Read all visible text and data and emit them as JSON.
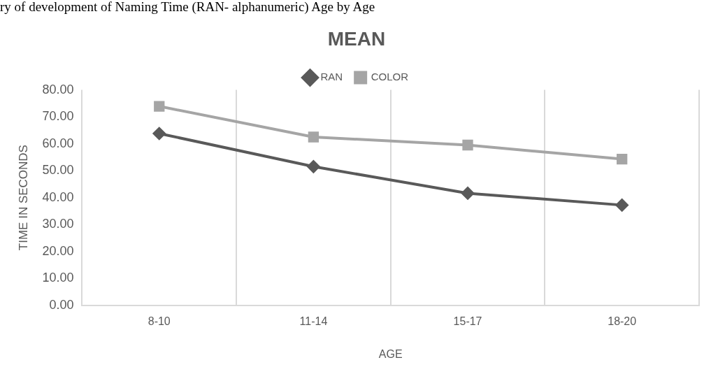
{
  "chart_data": {
    "type": "line",
    "title": "MEAN",
    "xlabel": "AGE",
    "ylabel": "TIME IN SECONDS",
    "annotations": [
      "ry of development of Naming Time (RAN- alphanumeric) Age by Age"
    ],
    "categories": [
      "8-10",
      "11-14",
      "15-17",
      "18-20"
    ],
    "series": [
      {
        "name": "RAN",
        "color": "#595959",
        "marker": "diamond",
        "values": [
          63.8,
          51.5,
          41.6,
          37.2
        ]
      },
      {
        "name": "COLOR",
        "color": "#a5a5a5",
        "marker": "square",
        "values": [
          73.9,
          62.5,
          59.5,
          54.3
        ]
      }
    ],
    "ylim": [
      0,
      80
    ],
    "yticks": [
      {
        "value": 0,
        "label": "0.00"
      },
      {
        "value": 10,
        "label": "10.00"
      },
      {
        "value": 20,
        "label": "20.00"
      },
      {
        "value": 30,
        "label": "30.00"
      },
      {
        "value": 40,
        "label": "40.00"
      },
      {
        "value": 50,
        "label": "50.00"
      },
      {
        "value": 60,
        "label": "60.00"
      },
      {
        "value": 70,
        "label": "70.00"
      },
      {
        "value": 80,
        "label": "80.00"
      }
    ],
    "grid": "x",
    "legend": "top",
    "line_style": "solid"
  }
}
